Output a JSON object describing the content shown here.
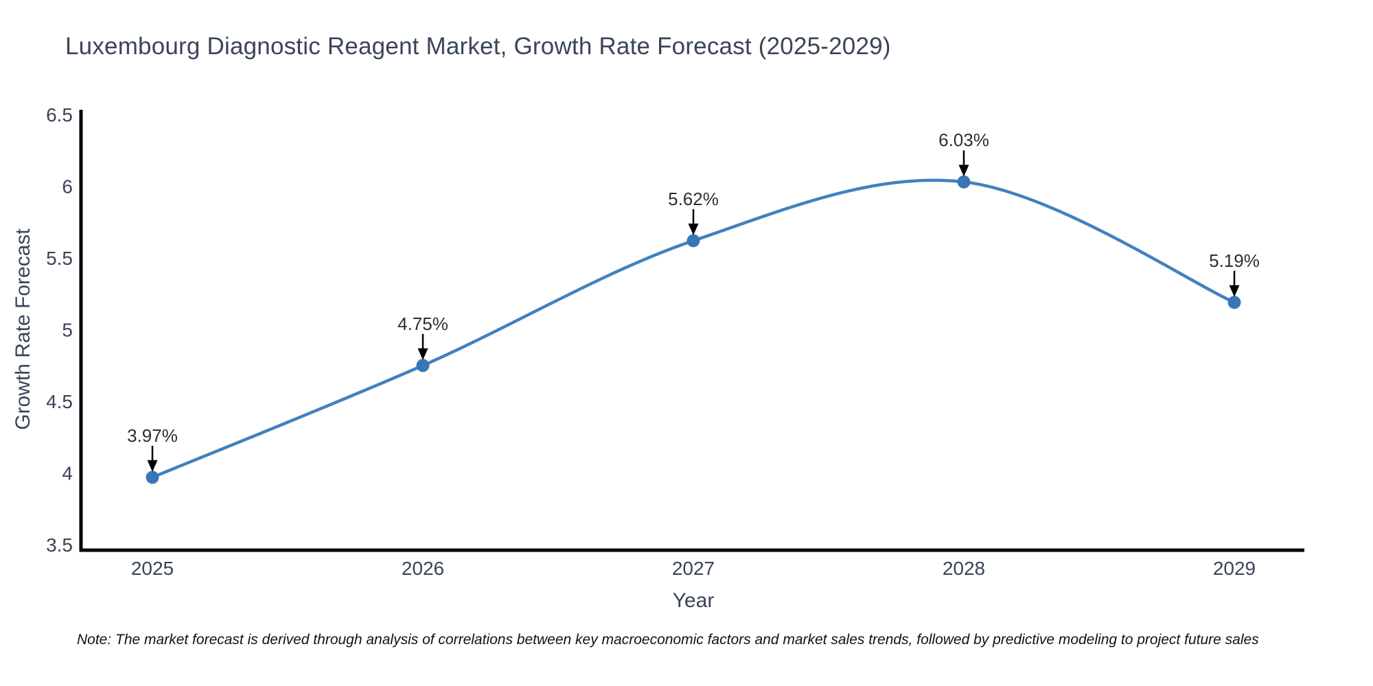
{
  "title": "Luxembourg Diagnostic Reagent Market, Growth Rate Forecast (2025-2029)",
  "note": "Note: The market forecast is derived through analysis of correlations between key macroeconomic factors and market sales trends, followed by predictive modeling to project future sales",
  "chart_data": {
    "type": "line",
    "title": "Luxembourg Diagnostic Reagent Market, Growth Rate Forecast (2025-2029)",
    "xlabel": "Year",
    "ylabel": "Growth Rate Forecast",
    "x": [
      2025,
      2026,
      2027,
      2028,
      2029
    ],
    "y": [
      3.97,
      4.75,
      5.62,
      6.03,
      5.19
    ],
    "point_labels": [
      "3.97%",
      "4.75%",
      "5.62%",
      "6.03%",
      "5.19%"
    ],
    "xtick_labels": [
      "2025",
      "2026",
      "2027",
      "2028",
      "2029"
    ],
    "ytick_values": [
      3.5,
      4,
      4.5,
      5,
      5.5,
      6,
      6.5
    ],
    "ytick_labels": [
      "3.5",
      "4",
      "4.5",
      "5",
      "5.5",
      "6",
      "6.5"
    ],
    "ylim": [
      3.5,
      6.5
    ],
    "grid": false,
    "legend": false,
    "smooth": true,
    "line_color": "#4181bf",
    "marker_color": "#3877b5",
    "axis_line_color": "#000000",
    "annotation_arrow_color": "#000000",
    "annotation_style": "arrow-down"
  },
  "colors": {
    "chart_text": "#3a4458",
    "annotation_text": "#2e2e2e",
    "note_text": "#111111",
    "background": "#ffffff"
  }
}
